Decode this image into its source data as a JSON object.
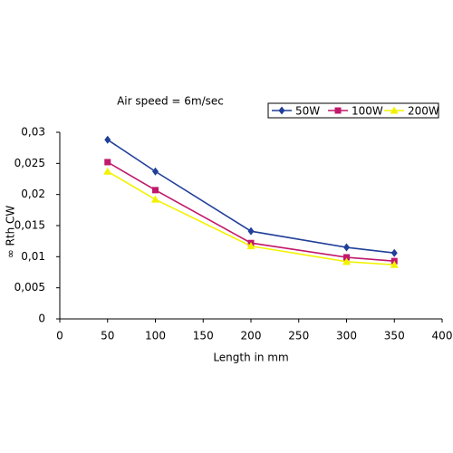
{
  "chart_data": {
    "type": "line",
    "title": "Air speed = 6m/sec",
    "x_label": "Length in mm",
    "y_label": "∞ Rth CW",
    "x": [
      50,
      100,
      200,
      300,
      350
    ],
    "series": [
      {
        "name": "50W",
        "color": "#1f3f99",
        "marker": "diamond",
        "values": [
          0.0288,
          0.0237,
          0.0141,
          0.0115,
          0.0106
        ]
      },
      {
        "name": "100W",
        "color": "#c0186a",
        "marker": "square",
        "values": [
          0.0252,
          0.0207,
          0.0122,
          0.0099,
          0.0093
        ]
      },
      {
        "name": "200W",
        "color": "#f2f200",
        "marker": "triangle",
        "values": [
          0.0237,
          0.0192,
          0.0117,
          0.0092,
          0.0087
        ]
      }
    ],
    "xlim": [
      0,
      400
    ],
    "xticks": [
      0,
      50,
      100,
      150,
      200,
      250,
      300,
      350,
      400
    ],
    "ylim": [
      0,
      0.03
    ],
    "yticks": [
      0,
      {
        "value": 0.005,
        "label": "0,005"
      },
      {
        "value": 0.01,
        "label": "0,01"
      },
      {
        "value": 0.015,
        "label": "0,015"
      },
      {
        "value": 0.02,
        "label": "0,02"
      },
      {
        "value": 0.025,
        "label": "0,025"
      },
      {
        "value": 0.03,
        "label": "0,03"
      }
    ],
    "grid": false,
    "legend": "top-right"
  }
}
